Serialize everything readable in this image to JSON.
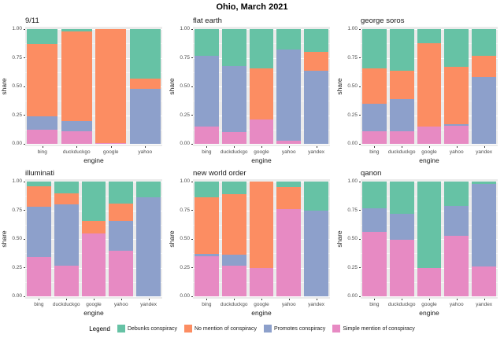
{
  "title": "Ohio, March 2021",
  "panel_background": "#EBEBEB",
  "legend": {
    "title": "Legend",
    "items": [
      {
        "label": "Debunks conspiracy",
        "color": "#66C2A5"
      },
      {
        "label": "No mention of conspiracy",
        "color": "#FC8D62"
      },
      {
        "label": "Promotes conspiracy",
        "color": "#8DA0CB"
      },
      {
        "label": "Simple mention of conspiracy",
        "color": "#E78AC3"
      }
    ]
  },
  "chart_data": {
    "type": "bar",
    "stacked": true,
    "faceted": true,
    "xlabel": "engine",
    "ylabel": "share",
    "ylim": [
      0,
      1
    ],
    "ytick_labels": [
      "0.00",
      "0.25",
      "0.50",
      "0.75",
      "1.00"
    ],
    "gridlines": {
      "major": [
        0,
        0.25,
        0.5,
        0.75,
        1
      ],
      "minor": [
        0.125,
        0.375,
        0.625,
        0.875
      ]
    },
    "series_colors": {
      "Simple mention of conspiracy": "#E78AC3",
      "Promotes conspiracy": "#8DA0CB",
      "No mention of conspiracy": "#FC8D62",
      "Debunks conspiracy": "#66C2A5"
    },
    "stack_order_bottom_to_top": [
      "Simple mention of conspiracy",
      "Promotes conspiracy",
      "No mention of conspiracy",
      "Debunks conspiracy"
    ],
    "panels": [
      {
        "title": "9/11",
        "categories": [
          "bing",
          "duckduckgo",
          "google",
          "yahoo"
        ],
        "series": [
          {
            "name": "Simple mention of conspiracy",
            "color": "#E78AC3",
            "values": [
              0.12,
              0.11,
              0.01,
              0.0
            ]
          },
          {
            "name": "Promotes conspiracy",
            "color": "#8DA0CB",
            "values": [
              0.12,
              0.09,
              0.0,
              0.48
            ]
          },
          {
            "name": "No mention of conspiracy",
            "color": "#FC8D62",
            "values": [
              0.63,
              0.78,
              0.99,
              0.09
            ]
          },
          {
            "name": "Debunks conspiracy",
            "color": "#66C2A5",
            "values": [
              0.13,
              0.02,
              0.0,
              0.43
            ]
          }
        ]
      },
      {
        "title": "flat earth",
        "categories": [
          "bing",
          "duckduckgo",
          "google",
          "yahoo",
          "yandex"
        ],
        "series": [
          {
            "name": "Simple mention of conspiracy",
            "color": "#E78AC3",
            "values": [
              0.15,
              0.1,
              0.21,
              0.03,
              0.0
            ]
          },
          {
            "name": "Promotes conspiracy",
            "color": "#8DA0CB",
            "values": [
              0.62,
              0.58,
              0.0,
              0.79,
              0.64
            ]
          },
          {
            "name": "No mention of conspiracy",
            "color": "#FC8D62",
            "values": [
              0.0,
              0.0,
              0.45,
              0.0,
              0.16
            ]
          },
          {
            "name": "Debunks conspiracy",
            "color": "#66C2A5",
            "values": [
              0.23,
              0.32,
              0.34,
              0.18,
              0.2
            ]
          }
        ]
      },
      {
        "title": "george soros",
        "categories": [
          "bing",
          "duckduckgo",
          "google",
          "yahoo",
          "yandex"
        ],
        "series": [
          {
            "name": "Simple mention of conspiracy",
            "color": "#E78AC3",
            "values": [
              0.11,
              0.11,
              0.15,
              0.16,
              0.0
            ]
          },
          {
            "name": "Promotes conspiracy",
            "color": "#8DA0CB",
            "values": [
              0.24,
              0.28,
              0.0,
              0.01,
              0.58
            ]
          },
          {
            "name": "No mention of conspiracy",
            "color": "#FC8D62",
            "values": [
              0.31,
              0.25,
              0.73,
              0.5,
              0.19
            ]
          },
          {
            "name": "Debunks conspiracy",
            "color": "#66C2A5",
            "values": [
              0.34,
              0.36,
              0.12,
              0.33,
              0.23
            ]
          }
        ]
      },
      {
        "title": "illuminati",
        "categories": [
          "bing",
          "duckduckgo",
          "google",
          "yahoo",
          "yandex"
        ],
        "series": [
          {
            "name": "Simple mention of conspiracy",
            "color": "#E78AC3",
            "values": [
              0.34,
              0.27,
              0.55,
              0.4,
              0.0
            ]
          },
          {
            "name": "Promotes conspiracy",
            "color": "#8DA0CB",
            "values": [
              0.44,
              0.53,
              0.0,
              0.26,
              0.86
            ]
          },
          {
            "name": "No mention of conspiracy",
            "color": "#FC8D62",
            "values": [
              0.18,
              0.1,
              0.11,
              0.15,
              0.0
            ]
          },
          {
            "name": "Debunks conspiracy",
            "color": "#66C2A5",
            "values": [
              0.04,
              0.1,
              0.34,
              0.19,
              0.14
            ]
          }
        ]
      },
      {
        "title": "new world order",
        "categories": [
          "bing",
          "duckduckgo",
          "google",
          "yahoo",
          "yandex"
        ],
        "series": [
          {
            "name": "Simple mention of conspiracy",
            "color": "#E78AC3",
            "values": [
              0.35,
              0.27,
              0.25,
              0.76,
              0.0
            ]
          },
          {
            "name": "Promotes conspiracy",
            "color": "#8DA0CB",
            "values": [
              0.02,
              0.09,
              0.0,
              0.0,
              0.75
            ]
          },
          {
            "name": "No mention of conspiracy",
            "color": "#FC8D62",
            "values": [
              0.49,
              0.53,
              0.75,
              0.19,
              0.0
            ]
          },
          {
            "name": "Debunks conspiracy",
            "color": "#66C2A5",
            "values": [
              0.14,
              0.11,
              0.0,
              0.05,
              0.25
            ]
          }
        ]
      },
      {
        "title": "qanon",
        "categories": [
          "bing",
          "duckduckgo",
          "google",
          "yahoo",
          "yandex"
        ],
        "series": [
          {
            "name": "Simple mention of conspiracy",
            "color": "#E78AC3",
            "values": [
              0.56,
              0.49,
              0.25,
              0.53,
              0.26
            ]
          },
          {
            "name": "Promotes conspiracy",
            "color": "#8DA0CB",
            "values": [
              0.21,
              0.23,
              0.0,
              0.26,
              0.72
            ]
          },
          {
            "name": "No mention of conspiracy",
            "color": "#FC8D62",
            "values": [
              0.0,
              0.0,
              0.0,
              0.0,
              0.0
            ]
          },
          {
            "name": "Debunks conspiracy",
            "color": "#66C2A5",
            "values": [
              0.23,
              0.28,
              0.75,
              0.21,
              0.02
            ]
          }
        ]
      }
    ]
  }
}
